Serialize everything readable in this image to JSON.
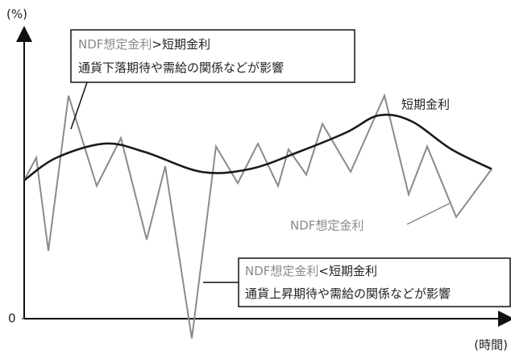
{
  "chart_data": {
    "type": "line",
    "y_label": "(%)",
    "x_label": "(時間)",
    "xlim": [
      0,
      600
    ],
    "ylim": [
      -10,
      100
    ],
    "yticks": [
      0
    ],
    "series": [
      {
        "name": "NDF想定金利",
        "color": "#8a8a8a",
        "x": [
          0,
          15,
          30,
          55,
          90,
          120,
          152,
          175,
          208,
          238,
          265,
          290,
          315,
          328,
          350,
          370,
          405,
          447,
          477,
          500,
          536,
          580
        ],
        "values": [
          49,
          57,
          24,
          79,
          47,
          64,
          28,
          54,
          -7,
          61,
          48,
          62,
          47,
          60,
          51,
          69,
          52,
          79,
          44,
          61,
          36,
          53
        ]
      },
      {
        "name": "短期金利",
        "color": "#1a1a1a",
        "smooth": true,
        "x": [
          0,
          40,
          100,
          150,
          220,
          280,
          340,
          400,
          440,
          480,
          530,
          580
        ],
        "values": [
          49,
          57,
          62,
          59,
          52,
          53,
          59,
          66,
          72,
          70,
          60,
          53
        ]
      }
    ],
    "annotations": [
      {
        "lines": [
          [
            "NDF想定金利",
            ">短期金利"
          ],
          [
            "通貨下落期待や需給の関係などが影響"
          ]
        ]
      },
      {
        "lines": [
          [
            "NDF想定金利",
            "<短期金利"
          ],
          [
            "通貨上昇期待や需給の関係などが影響"
          ]
        ]
      }
    ]
  }
}
